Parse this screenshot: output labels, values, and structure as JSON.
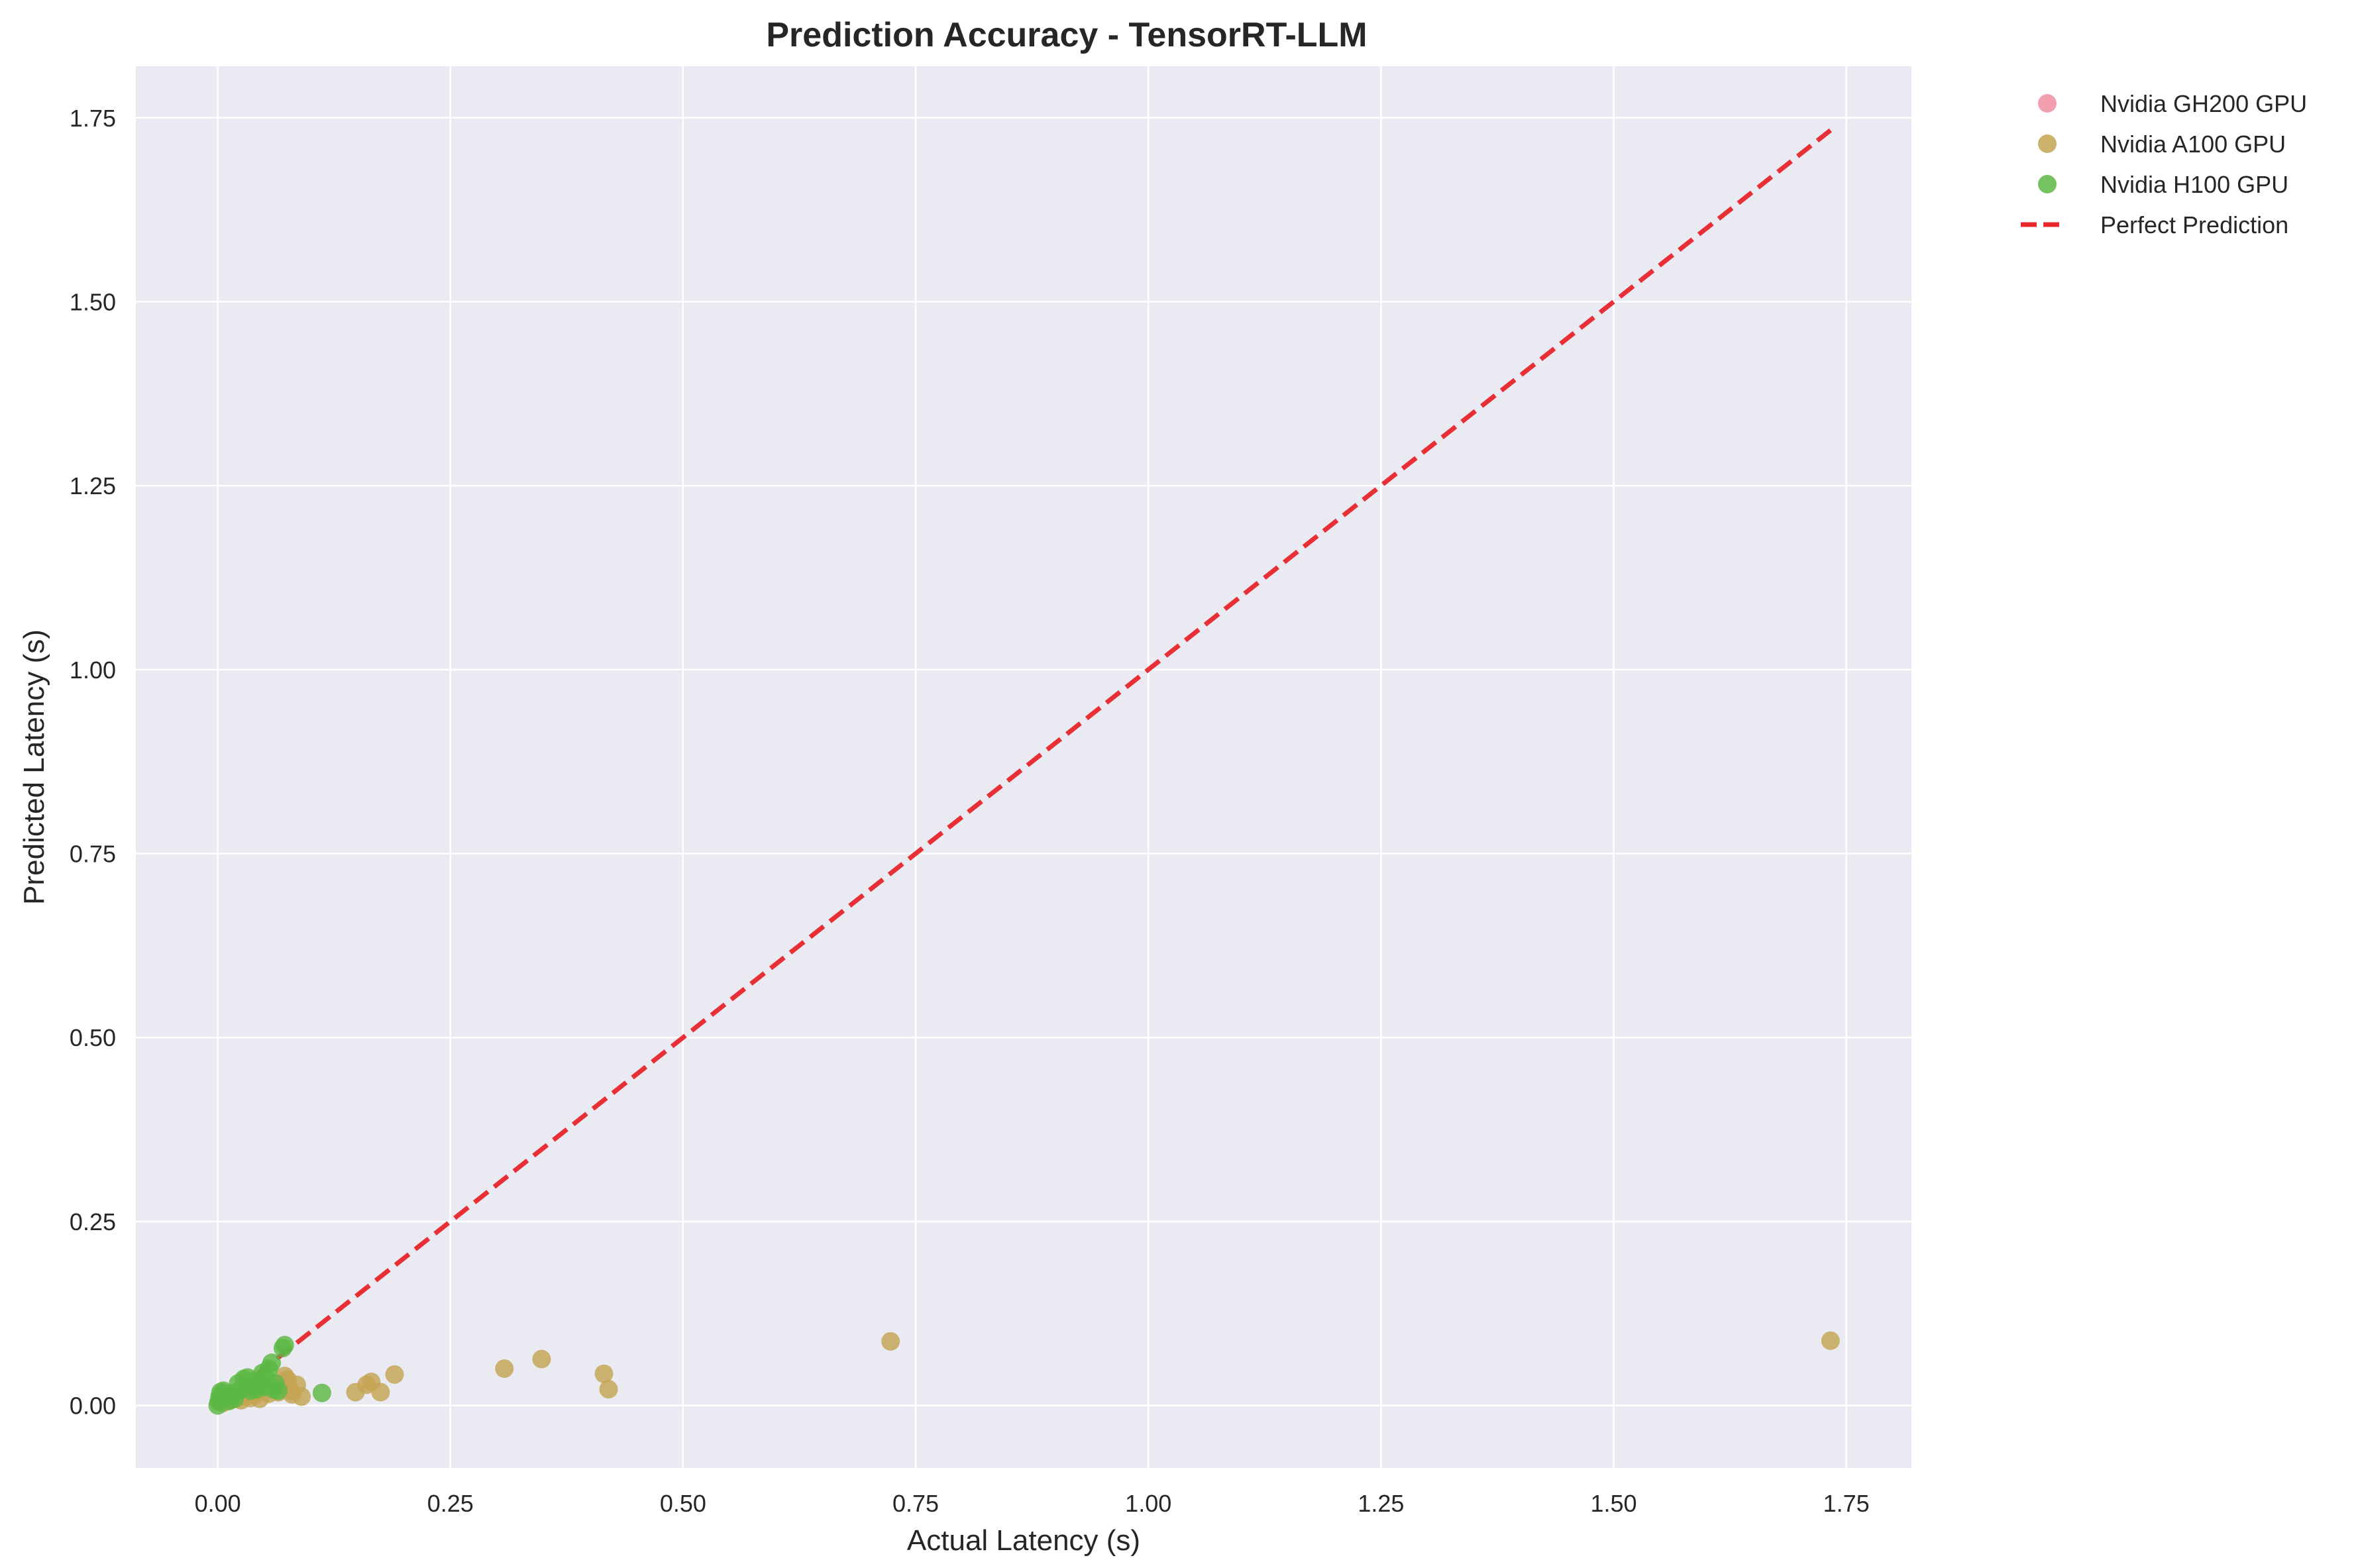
{
  "chart_data": {
    "type": "scatter",
    "title": "Prediction Accuracy - TensorRT-LLM",
    "xlabel": "Actual Latency (s)",
    "ylabel": "Predicted Latency (s)",
    "xlim": [
      -0.088,
      1.82
    ],
    "ylim": [
      -0.085,
      1.82
    ],
    "x_ticks": [
      "0.00",
      "0.25",
      "0.50",
      "0.75",
      "1.00",
      "1.25",
      "1.50",
      "1.75"
    ],
    "y_ticks": [
      "0.00",
      "0.25",
      "0.50",
      "0.75",
      "1.00",
      "1.25",
      "1.50",
      "1.75"
    ],
    "grid": true,
    "legend_position": "outside-top-right",
    "colors": {
      "plot_background": "#eaeaf2",
      "grid": "#ffffff",
      "gh200": "#f08fa2",
      "a100": "#c4a552",
      "h100": "#5cb844",
      "perfect": "#e8262b"
    },
    "series": [
      {
        "name": "Nvidia GH200 GPU",
        "color": "#f08fa2",
        "points": []
      },
      {
        "name": "Nvidia A100 GPU",
        "color": "#c4a552",
        "points": [
          [
            0.005,
            0.003
          ],
          [
            0.01,
            0.006
          ],
          [
            0.015,
            0.008
          ],
          [
            0.02,
            0.01
          ],
          [
            0.025,
            0.007
          ],
          [
            0.03,
            0.012
          ],
          [
            0.035,
            0.01
          ],
          [
            0.04,
            0.014
          ],
          [
            0.045,
            0.009
          ],
          [
            0.05,
            0.02
          ],
          [
            0.055,
            0.016
          ],
          [
            0.06,
            0.025
          ],
          [
            0.065,
            0.018
          ],
          [
            0.07,
            0.03
          ],
          [
            0.072,
            0.04
          ],
          [
            0.075,
            0.035
          ],
          [
            0.078,
            0.02
          ],
          [
            0.08,
            0.015
          ],
          [
            0.085,
            0.028
          ],
          [
            0.09,
            0.012
          ],
          [
            0.148,
            0.018
          ],
          [
            0.16,
            0.028
          ],
          [
            0.165,
            0.032
          ],
          [
            0.175,
            0.018
          ],
          [
            0.19,
            0.042
          ],
          [
            0.308,
            0.05
          ],
          [
            0.348,
            0.063
          ],
          [
            0.415,
            0.043
          ],
          [
            0.42,
            0.022
          ],
          [
            0.723,
            0.087
          ],
          [
            1.733,
            0.088
          ]
        ]
      },
      {
        "name": "Nvidia H100 GPU",
        "color": "#5cb844",
        "points": [
          [
            0.0,
            0.0
          ],
          [
            0.001,
            0.005
          ],
          [
            0.002,
            0.012
          ],
          [
            0.003,
            0.018
          ],
          [
            0.004,
            0.008
          ],
          [
            0.005,
            0.015
          ],
          [
            0.006,
            0.02
          ],
          [
            0.008,
            0.01
          ],
          [
            0.01,
            0.016
          ],
          [
            0.012,
            0.006
          ],
          [
            0.015,
            0.012
          ],
          [
            0.018,
            0.009
          ],
          [
            0.02,
            0.018
          ],
          [
            0.022,
            0.03
          ],
          [
            0.025,
            0.022
          ],
          [
            0.028,
            0.036
          ],
          [
            0.03,
            0.026
          ],
          [
            0.032,
            0.038
          ],
          [
            0.035,
            0.02
          ],
          [
            0.038,
            0.028
          ],
          [
            0.04,
            0.034
          ],
          [
            0.042,
            0.022
          ],
          [
            0.045,
            0.03
          ],
          [
            0.048,
            0.044
          ],
          [
            0.05,
            0.025
          ],
          [
            0.052,
            0.038
          ],
          [
            0.055,
            0.05
          ],
          [
            0.058,
            0.058
          ],
          [
            0.06,
            0.022
          ],
          [
            0.062,
            0.03
          ],
          [
            0.065,
            0.02
          ],
          [
            0.07,
            0.078
          ],
          [
            0.072,
            0.082
          ],
          [
            0.112,
            0.017
          ]
        ]
      },
      {
        "name": "Perfect Prediction",
        "color": "#e8262b",
        "style": "dashed",
        "points": [
          [
            0.0,
            0.0
          ],
          [
            1.733,
            1.733
          ]
        ]
      }
    ]
  }
}
